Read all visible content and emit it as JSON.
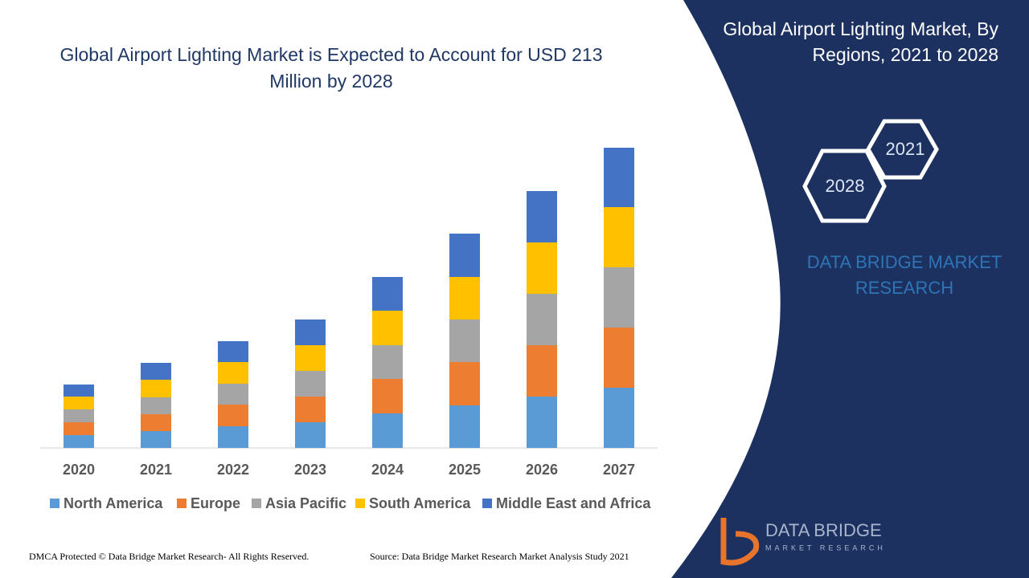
{
  "chart_data": {
    "type": "bar",
    "stacked": true,
    "title": "Global Airport Lighting Market is Expected to Account for USD 213 Million by 2028",
    "categories": [
      "2020",
      "2021",
      "2022",
      "2023",
      "2024",
      "2025",
      "2026",
      "2027"
    ],
    "series": [
      {
        "name": "North America",
        "color": "#5b9bd5",
        "values": [
          16,
          21,
          27,
          32,
          43,
          53,
          64,
          75
        ]
      },
      {
        "name": "Europe",
        "color": "#ed7d31",
        "values": [
          16,
          21,
          27,
          32,
          43,
          54,
          64,
          75
        ]
      },
      {
        "name": "Asia Pacific",
        "color": "#a5a5a5",
        "values": [
          16,
          21,
          26,
          32,
          42,
          53,
          64,
          75
        ]
      },
      {
        "name": "South America",
        "color": "#ffc000",
        "values": [
          16,
          22,
          27,
          32,
          43,
          53,
          64,
          75
        ]
      },
      {
        "name": "Middle East and Africa",
        "color": "#4472c4",
        "values": [
          15,
          21,
          26,
          32,
          42,
          54,
          64,
          74
        ]
      }
    ],
    "legend": "bottom"
  },
  "panel": {
    "title": "Global Airport Lighting Market, By Regions, 2021 to 2028",
    "hex_start": "2021",
    "hex_end": "2028",
    "brand": "DATA BRIDGE MARKET RESEARCH",
    "logo_name": "DATA BRIDGE",
    "logo_sub": "MARKET RESEARCH"
  },
  "footer": {
    "copyright": "DMCA Protected © Data Bridge Market Research- All Rights Reserved.",
    "source": "Source: Data Bridge Market Research Market Analysis Study 2021"
  }
}
